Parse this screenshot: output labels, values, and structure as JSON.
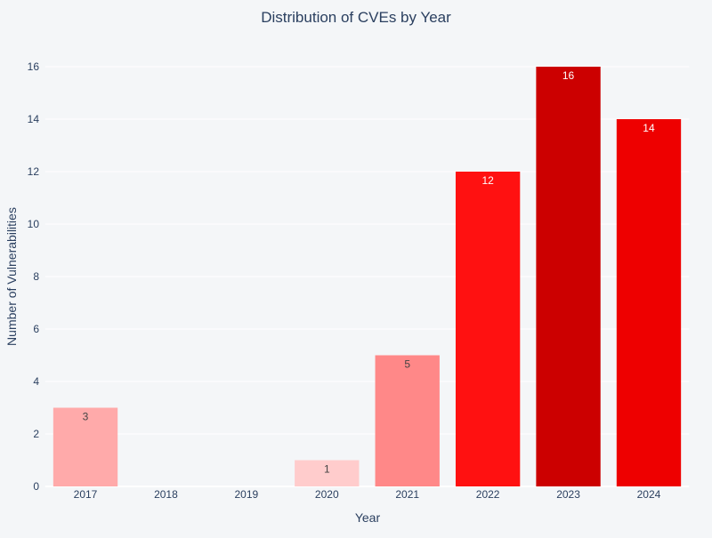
{
  "chart_data": {
    "type": "bar",
    "title": "Distribution of CVEs by Year",
    "xlabel": "Year",
    "ylabel": "Number of Vulnerabilities",
    "categories": [
      "2017",
      "2018",
      "2019",
      "2020",
      "2021",
      "2022",
      "2023",
      "2024"
    ],
    "values": [
      3,
      0,
      0,
      1,
      5,
      12,
      16,
      14
    ],
    "colors": [
      "#ffaaaa",
      null,
      null,
      "#ffcccc",
      "#ff8888",
      "#ff1111",
      "#cc0000",
      "#ee0000"
    ],
    "label_colors": [
      "#444444",
      null,
      null,
      "#444444",
      "#444444",
      "#ffffff",
      "#ffffff",
      "#ffffff"
    ],
    "ylim": [
      0,
      16
    ],
    "yticks": [
      0,
      2,
      4,
      6,
      8,
      10,
      12,
      14,
      16
    ],
    "grid": true,
    "legend": "none"
  }
}
